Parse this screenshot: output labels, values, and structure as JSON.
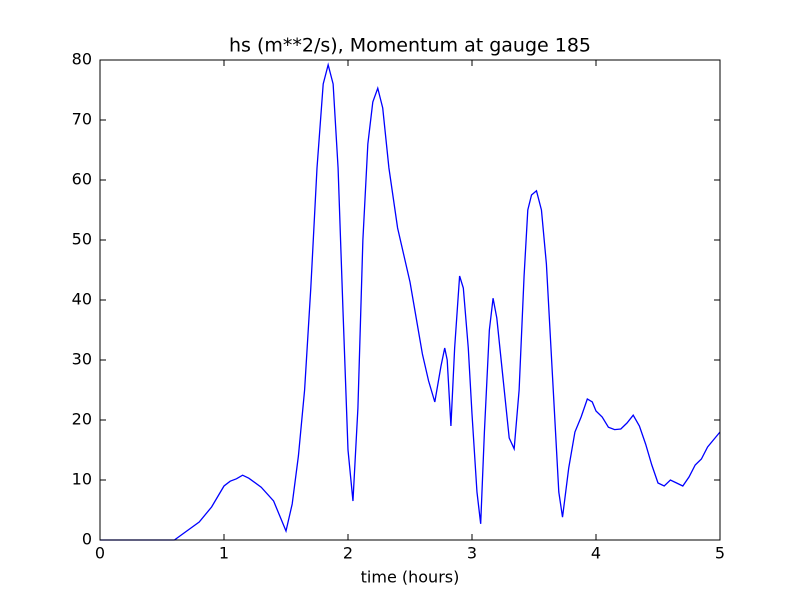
{
  "chart_data": {
    "type": "line",
    "title": "hs (m**2/s), Momentum at gauge 185",
    "x_label": "time (hours)",
    "x": [
      0,
      0.6,
      0.7,
      0.8,
      0.9,
      1.0,
      1.05,
      1.1,
      1.15,
      1.2,
      1.3,
      1.4,
      1.45,
      1.5,
      1.55,
      1.6,
      1.65,
      1.7,
      1.75,
      1.8,
      1.84,
      1.88,
      1.92,
      1.96,
      2.0,
      2.04,
      2.08,
      2.12,
      2.16,
      2.2,
      2.24,
      2.28,
      2.33,
      2.4,
      2.45,
      2.5,
      2.55,
      2.6,
      2.65,
      2.7,
      2.75,
      2.78,
      2.8,
      2.83,
      2.86,
      2.9,
      2.93,
      2.97,
      3.0,
      3.04,
      3.07,
      3.1,
      3.14,
      3.17,
      3.2,
      3.25,
      3.3,
      3.34,
      3.38,
      3.42,
      3.45,
      3.48,
      3.52,
      3.56,
      3.6,
      3.65,
      3.7,
      3.73,
      3.78,
      3.83,
      3.88,
      3.93,
      3.97,
      4.0,
      4.05,
      4.1,
      4.15,
      4.2,
      4.25,
      4.3,
      4.35,
      4.4,
      4.45,
      4.5,
      4.55,
      4.6,
      4.65,
      4.7,
      4.75,
      4.8,
      4.85,
      4.9,
      5.0
    ],
    "series": [
      {
        "color": "#0000ff",
        "values": [
          0,
          0,
          1.5,
          3,
          5.5,
          9,
          9.8,
          10.2,
          10.8,
          10.3,
          8.8,
          6.5,
          4,
          1.5,
          6,
          14,
          25,
          42,
          62,
          76,
          79.2,
          76,
          62,
          38,
          15,
          6.5,
          22,
          50,
          66,
          73,
          75.3,
          72,
          62,
          52,
          47.5,
          43,
          37,
          31,
          26.5,
          23,
          29,
          32,
          30,
          19,
          32,
          44,
          42,
          32,
          21,
          8,
          2.7,
          18,
          35,
          40.3,
          37,
          27,
          17,
          15.2,
          25,
          44,
          55,
          57.5,
          58.2,
          55,
          46,
          27,
          8,
          3.8,
          12,
          18,
          20.5,
          23.5,
          23,
          21.5,
          20.5,
          18.8,
          18.4,
          18.5,
          19.5,
          20.8,
          19,
          16,
          12.5,
          9.5,
          9,
          10,
          9.5,
          9,
          10.5,
          12.5,
          13.5,
          15.5,
          18
        ]
      }
    ],
    "hlines": [
      0
    ],
    "xlim": [
      0,
      5
    ],
    "xticks": [
      0,
      1,
      2,
      3,
      4,
      5
    ],
    "ylim": [
      0,
      80
    ],
    "yticks": [
      0,
      10,
      20,
      30,
      40,
      50,
      60,
      70,
      80
    ]
  }
}
